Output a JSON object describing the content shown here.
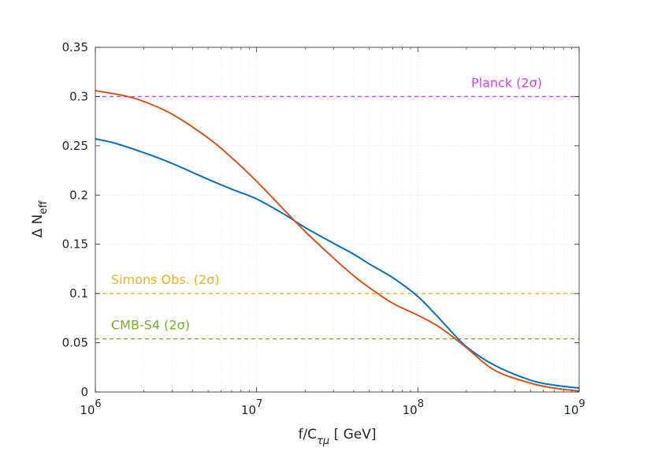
{
  "chart_data": {
    "type": "line",
    "title": "",
    "xlabel": {
      "base": "f/C",
      "subscript": "τμ",
      "unit": " [ GeV]"
    },
    "ylabel": {
      "base": "Δ N",
      "subscript": "eff"
    },
    "xscale": "log",
    "xlim": [
      1000000,
      1000000000
    ],
    "ylim": [
      0,
      0.35
    ],
    "grid": true,
    "x_ticks": [
      {
        "base": "10",
        "exp": "6"
      },
      {
        "base": "10",
        "exp": "7"
      },
      {
        "base": "10",
        "exp": "8"
      },
      {
        "base": "10",
        "exp": "9"
      }
    ],
    "y_ticks": [
      "0",
      "0.05",
      "0.1",
      "0.15",
      "0.2",
      "0.25",
      "0.3",
      "0.35"
    ],
    "series": [
      {
        "name": "blue curve",
        "color": "#0072BD",
        "x": [
          1000000,
          1300000,
          2000000,
          3000000,
          5000000,
          7000000,
          10000000,
          15000000,
          20000000,
          30000000,
          40000000,
          50000000,
          70000000,
          100000000,
          130000000,
          150000000,
          200000000,
          300000000,
          500000000,
          700000000,
          1000000000
        ],
        "y": [
          0.257,
          0.253,
          0.243,
          0.232,
          0.216,
          0.206,
          0.196,
          0.18,
          0.167,
          0.151,
          0.14,
          0.13,
          0.116,
          0.097,
          0.078,
          0.067,
          0.046,
          0.027,
          0.012,
          0.007,
          0.004
        ]
      },
      {
        "name": "orange curve",
        "color": "#D95319",
        "x": [
          1000000,
          1500000,
          2000000,
          3000000,
          5000000,
          7000000,
          10000000,
          15000000,
          20000000,
          30000000,
          40000000,
          50000000,
          70000000,
          100000000,
          130000000,
          150000000,
          200000000,
          300000000,
          500000000,
          700000000,
          1000000000
        ],
        "y": [
          0.306,
          0.301,
          0.295,
          0.282,
          0.258,
          0.238,
          0.214,
          0.184,
          0.163,
          0.136,
          0.118,
          0.106,
          0.09,
          0.078,
          0.068,
          0.061,
          0.045,
          0.022,
          0.009,
          0.004,
          0.001
        ]
      }
    ],
    "reference_lines": [
      {
        "name": "Planck (2σ)",
        "y": 0.3,
        "color": "#CC44EE",
        "label_anchor": "right"
      },
      {
        "name": "Simons Obs. (2σ)",
        "y": 0.1,
        "color": "#EDB120",
        "label_anchor": "left"
      },
      {
        "name": "CMB-S4 (2σ)",
        "y": 0.054,
        "color": "#77AC30",
        "label_anchor": "left"
      }
    ]
  }
}
